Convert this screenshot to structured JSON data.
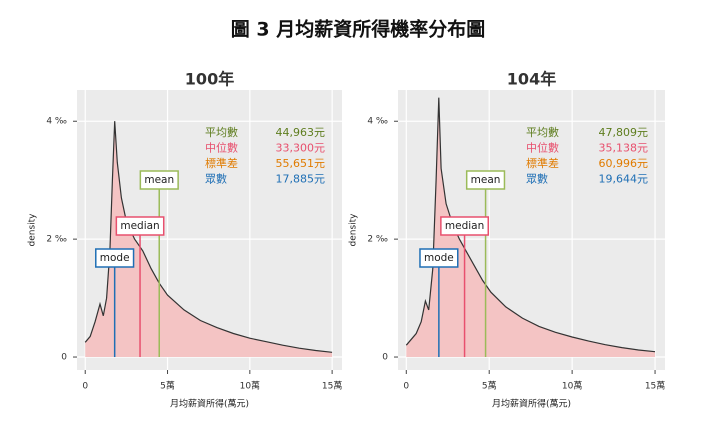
{
  "title": "圖 3 月均薪資所得機率分布圖",
  "chart_data": [
    {
      "type": "area",
      "title": "100年",
      "xlabel": "月均薪資所得(萬元)",
      "ylabel": "density",
      "x": [
        0,
        0.3,
        0.6,
        0.9,
        1.1,
        1.3,
        1.5,
        1.65,
        1.79,
        1.95,
        2.2,
        2.5,
        3.0,
        3.5,
        4.0,
        4.5,
        5.0,
        6.0,
        7.0,
        8.0,
        9.0,
        10.0,
        11.0,
        12.0,
        13.0,
        14.0,
        15.0
      ],
      "values": [
        0.25,
        0.35,
        0.6,
        0.9,
        0.7,
        1.0,
        1.8,
        3.0,
        4.0,
        3.3,
        2.7,
        2.3,
        2.0,
        1.8,
        1.5,
        1.25,
        1.05,
        0.8,
        0.62,
        0.5,
        0.4,
        0.32,
        0.26,
        0.2,
        0.15,
        0.11,
        0.08
      ],
      "color": "#f4c4c4",
      "line_color": "#333333",
      "xlim": [
        -0.5,
        15.6
      ],
      "ylim": [
        -0.22,
        4.53
      ],
      "grid": true,
      "xticks": [
        0,
        {
          "value": 5,
          "label": "5萬"
        },
        {
          "value": 10,
          "label": "10萬"
        },
        {
          "value": 15,
          "label": "15萬"
        }
      ],
      "yticks": [
        0,
        {
          "value": 2,
          "label": "2 ‰"
        },
        {
          "value": 4,
          "label": "4 ‰"
        }
      ],
      "stats": [
        {
          "name": "平均數",
          "label": "44,963元",
          "value": 4.4963,
          "color": "#5e7d1e",
          "marker": "mean",
          "marker_color": "#9bbb59"
        },
        {
          "name": "中位數",
          "label": "33,300元",
          "value": 3.33,
          "color": "#e8506e",
          "marker": "median",
          "marker_color": "#e8506e"
        },
        {
          "name": "標準差",
          "label": "55,651元",
          "value": 5.5651,
          "color": "#e07b00"
        },
        {
          "name": "眾數",
          "label": "17,885元",
          "value": 1.7885,
          "color": "#1f6fb5",
          "marker": "mode",
          "marker_color": "#1f6fb5"
        }
      ]
    },
    {
      "type": "area",
      "title": "104年",
      "xlabel": "月均薪資所得(萬元)",
      "ylabel": "density",
      "x": [
        0,
        0.3,
        0.6,
        0.9,
        1.15,
        1.35,
        1.6,
        1.8,
        1.96,
        2.1,
        2.4,
        2.8,
        3.2,
        3.6,
        4.1,
        4.6,
        5.1,
        6.0,
        7.0,
        8.0,
        9.0,
        10.0,
        11.0,
        12.0,
        13.0,
        14.0,
        15.0
      ],
      "values": [
        0.2,
        0.3,
        0.4,
        0.6,
        0.95,
        0.8,
        1.5,
        3.0,
        4.4,
        3.2,
        2.6,
        2.25,
        2.0,
        1.8,
        1.55,
        1.3,
        1.1,
        0.85,
        0.66,
        0.52,
        0.42,
        0.34,
        0.27,
        0.21,
        0.16,
        0.12,
        0.09
      ],
      "color": "#f4c4c4",
      "line_color": "#333333",
      "xlim": [
        -0.5,
        15.6
      ],
      "ylim": [
        -0.22,
        4.53
      ],
      "grid": true,
      "xticks": [
        0,
        {
          "value": 5,
          "label": "5萬"
        },
        {
          "value": 10,
          "label": "10萬"
        },
        {
          "value": 15,
          "label": "15萬"
        }
      ],
      "yticks": [
        0,
        {
          "value": 2,
          "label": "2 ‰"
        },
        {
          "value": 4,
          "label": "4 ‰"
        }
      ],
      "stats": [
        {
          "name": "平均數",
          "label": "47,809元",
          "value": 4.7809,
          "color": "#5e7d1e",
          "marker": "mean",
          "marker_color": "#9bbb59"
        },
        {
          "name": "中位數",
          "label": "35,138元",
          "value": 3.5138,
          "color": "#e8506e",
          "marker": "median",
          "marker_color": "#e8506e"
        },
        {
          "name": "標準差",
          "label": "60,996元",
          "value": 6.0996,
          "color": "#e07b00"
        },
        {
          "name": "眾數",
          "label": "19,644元",
          "value": 1.9644,
          "color": "#1f6fb5",
          "marker": "mode",
          "marker_color": "#1f6fb5"
        }
      ]
    }
  ]
}
